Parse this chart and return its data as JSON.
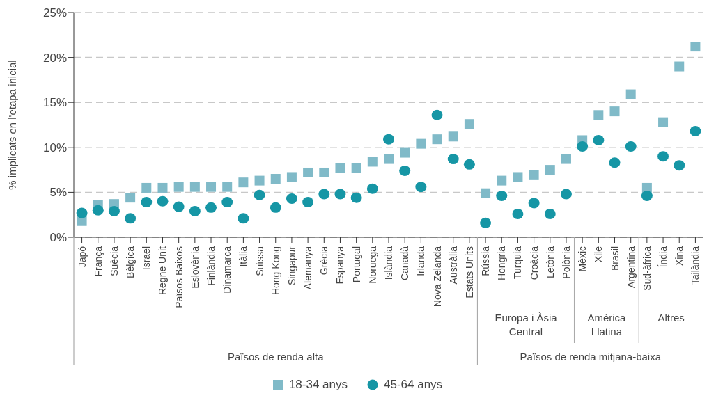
{
  "chart_data": {
    "type": "scatter",
    "ylabel": "% implicats en l'etapa inicial",
    "categories": [
      "Japó",
      "França",
      "Suècia",
      "Bèlgica",
      "Israel",
      "Regne Unit",
      "Països Baixos",
      "Eslovènia",
      "Finlàndia",
      "Dinamarca",
      "Itàlia",
      "Suïssa",
      "Hong Kong",
      "Singapur",
      "Alemanya",
      "Grècia",
      "Espanya",
      "Portugal",
      "Noruega",
      "Islàndia",
      "Canadà",
      "Irlanda",
      "Nova Zelanda",
      "Austràlia",
      "Estats Units",
      "Rússia",
      "Hongria",
      "Turquia",
      "Croàcia",
      "Letònia",
      "Polònia",
      "Mèxic",
      "Xile",
      "Brasil",
      "Argentina",
      "Sud-àfrica",
      "Índia",
      "Xina",
      "Tailàndia"
    ],
    "series": [
      {
        "name": "18-34 anys",
        "color": "#80bac8",
        "marker": "square",
        "values": [
          1.8,
          3.6,
          3.7,
          4.4,
          5.5,
          5.5,
          5.6,
          5.6,
          5.6,
          5.6,
          6.1,
          6.3,
          6.5,
          6.7,
          7.2,
          7.2,
          7.7,
          7.7,
          8.4,
          8.7,
          9.4,
          10.4,
          10.9,
          11.2,
          12.6,
          4.9,
          6.3,
          6.7,
          6.9,
          7.5,
          8.7,
          10.8,
          13.6,
          14.0,
          15.9,
          5.5,
          12.8,
          19.0,
          21.2
        ]
      },
      {
        "name": "45-64 anys",
        "color": "#1696a5",
        "marker": "circle",
        "values": [
          2.7,
          3.0,
          2.9,
          2.1,
          3.9,
          4.0,
          3.4,
          2.9,
          3.3,
          3.9,
          2.1,
          4.7,
          3.3,
          4.3,
          3.9,
          4.8,
          4.8,
          4.4,
          5.4,
          10.9,
          7.4,
          5.6,
          13.6,
          8.7,
          8.1,
          1.6,
          4.6,
          2.6,
          3.8,
          2.6,
          4.8,
          10.1,
          10.8,
          8.3,
          10.1,
          4.6,
          9.0,
          8.0,
          11.8
        ]
      }
    ],
    "ylim": [
      0,
      25
    ],
    "yticks": [
      {
        "value": 0,
        "label": "0%"
      },
      {
        "value": 5,
        "label": "5%"
      },
      {
        "value": 10,
        "label": "10%"
      },
      {
        "value": 15,
        "label": "15%"
      },
      {
        "value": 20,
        "label": "20%"
      },
      {
        "value": 25,
        "label": "25%"
      }
    ],
    "grid": "y",
    "legend": "bottom",
    "annotations": [
      "Europa i Àsia Central",
      "Amèrica Llatina",
      "Altres",
      "Països de renda alta",
      "Països de renda mitjana-baixa"
    ]
  }
}
